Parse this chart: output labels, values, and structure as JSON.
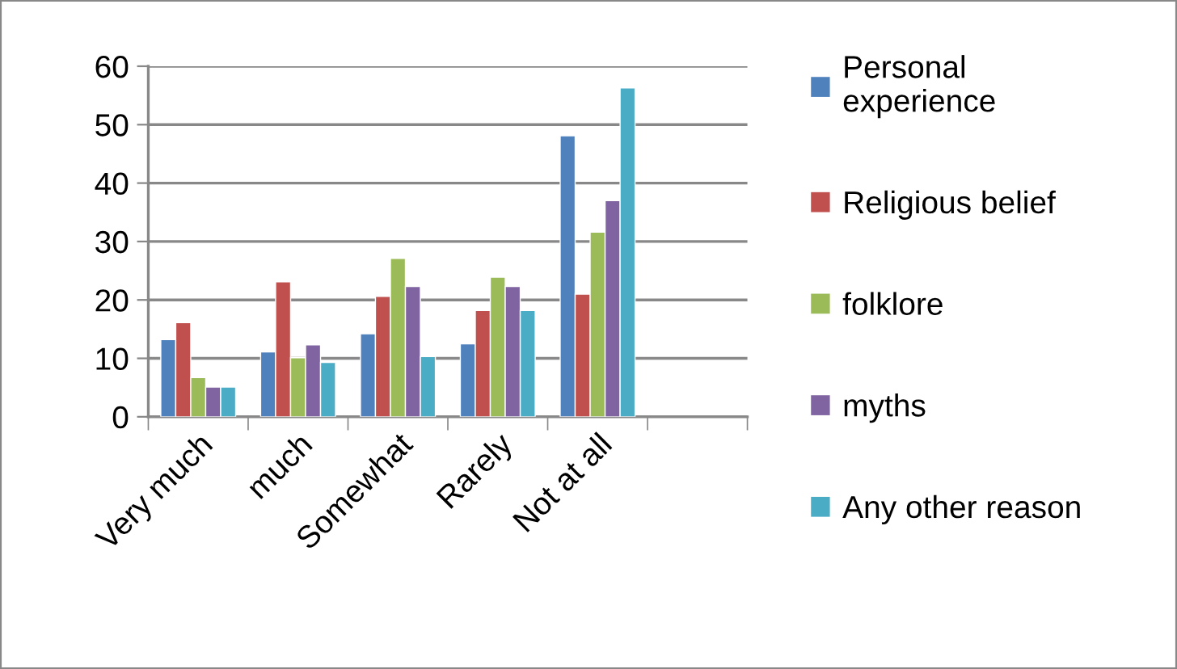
{
  "chart_data": {
    "type": "bar",
    "categories": [
      "Very much",
      "much",
      "Somewhat",
      "Rarely",
      "Not at all",
      null
    ],
    "series": [
      {
        "name": "Personal\nexperience",
        "color": "#4f81bd",
        "values": [
          13.2,
          11.1,
          14.2,
          12.5,
          48.1,
          null
        ]
      },
      {
        "name": "Religious belief",
        "color": "#c0504d",
        "values": [
          16.1,
          23.1,
          20.6,
          18.2,
          21.0,
          null
        ]
      },
      {
        "name": "folklore",
        "color": "#9bbb59",
        "values": [
          6.7,
          10.1,
          27.1,
          23.9,
          31.6,
          null
        ]
      },
      {
        "name": "myths",
        "color": "#8064a2",
        "values": [
          5.1,
          12.3,
          22.3,
          22.3,
          37.0,
          null
        ]
      },
      {
        "name": "Any other reason",
        "color": "#4bacc6",
        "values": [
          5.1,
          9.3,
          10.3,
          18.2,
          56.3,
          null
        ]
      }
    ],
    "ylim": [
      0,
      60
    ],
    "yticks": [
      0,
      10,
      20,
      30,
      40,
      50,
      60
    ],
    "grid": "y",
    "legend": "right"
  }
}
